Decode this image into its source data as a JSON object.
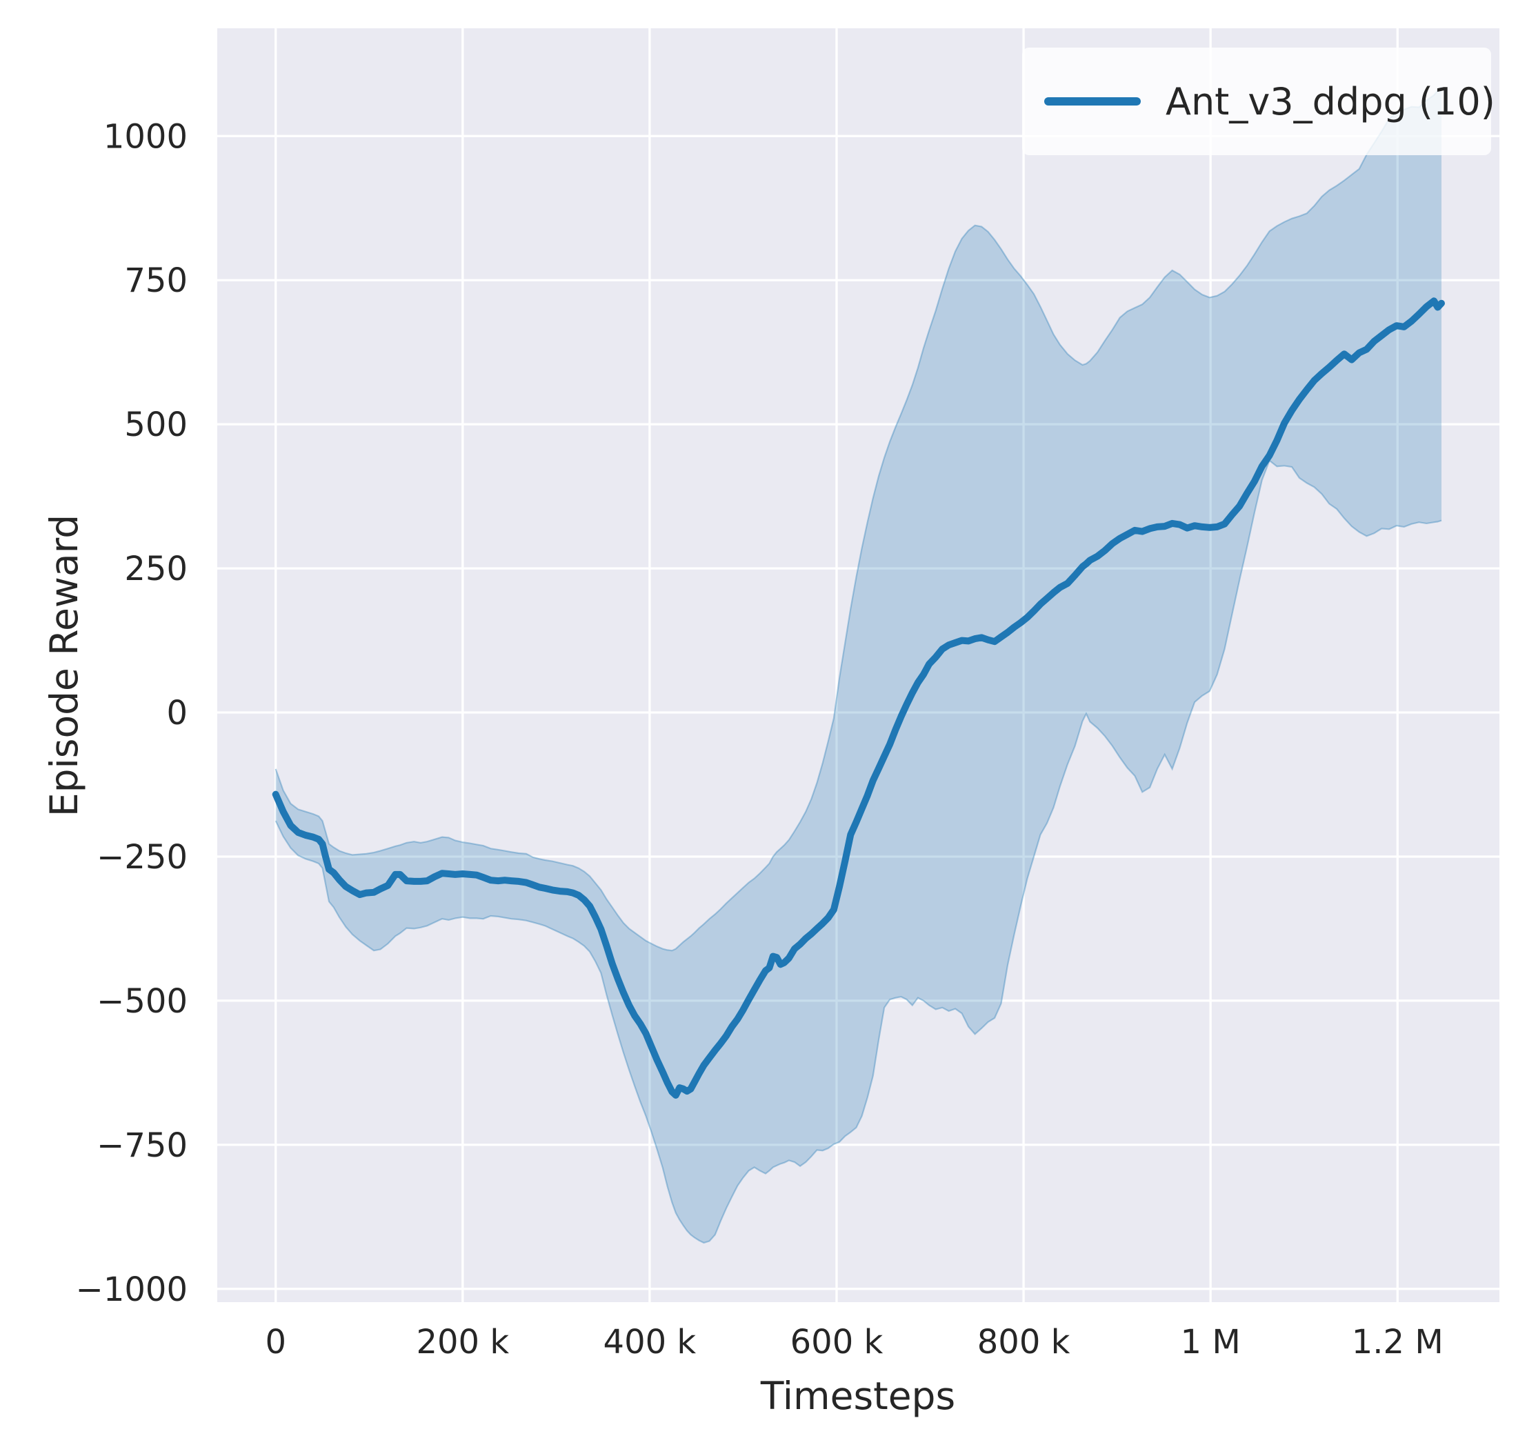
{
  "chart_data": {
    "type": "line",
    "title": "",
    "xlabel": "Timesteps",
    "ylabel": "Episode Reward",
    "grid": true,
    "plot_bg_color": "#eaeaf2",
    "grid_color": "#ffffff",
    "text_color": "#262626",
    "xlim": [
      -62500,
      1309000
    ],
    "ylim": [
      -1023,
      1187
    ],
    "x_ticks": {
      "values": [
        0,
        200000,
        400000,
        600000,
        800000,
        1000000,
        1200000
      ],
      "labels": [
        "0",
        "200 k",
        "400 k",
        "600 k",
        "800 k",
        "1 M",
        "1.2 M"
      ]
    },
    "y_ticks": {
      "values": [
        -1000,
        -750,
        -500,
        -250,
        0,
        250,
        500,
        750,
        1000
      ],
      "labels": [
        "−1000",
        "−750",
        "−500",
        "−250",
        "0",
        "250",
        "500",
        "750",
        "1000"
      ]
    },
    "legend": {
      "label": "Ant_v3_ddpg (10)",
      "position": "upper-right",
      "bg_color": "#ffffff",
      "bg_opacity": 0.8
    },
    "series": [
      {
        "name": "Ant_v3_ddpg (10)",
        "color": "#1f77b4",
        "band_opacity": 0.25,
        "band_edge_opacity": 0.35,
        "x": [
          0,
          8000,
          16000,
          24000,
          32000,
          40000,
          46000,
          50000,
          53000,
          57000,
          62000,
          68000,
          75000,
          82000,
          90000,
          97000,
          105000,
          112000,
          120000,
          128000,
          133000,
          140000,
          148000,
          155000,
          162000,
          170000,
          178000,
          185000,
          192000,
          200000,
          208000,
          215000,
          222000,
          230000,
          238000,
          245000,
          252000,
          260000,
          268000,
          275000,
          282000,
          288000,
          296000,
          304000,
          312000,
          318000,
          324000,
          330000,
          336000,
          342000,
          348000,
          354000,
          360000,
          366000,
          372000,
          378000,
          384000,
          390000,
          396000,
          402000,
          408000,
          414000,
          419000,
          424000,
          428000,
          432000,
          436000,
          440000,
          444000,
          448000,
          453000,
          458000,
          464000,
          470000,
          476000,
          482000,
          488000,
          494000,
          500000,
          506000,
          512000,
          518000,
          524000,
          528000,
          532000,
          536000,
          540000,
          544000,
          549000,
          555000,
          561000,
          567000,
          573000,
          579000,
          585000,
          591000,
          597000,
          603000,
          609000,
          615000,
          621000,
          627000,
          633000,
          639000,
          645000,
          651000,
          657000,
          663000,
          669000,
          675000,
          681000,
          687000,
          693000,
          699000,
          706000,
          713000,
          720000,
          727000,
          734000,
          741000,
          748000,
          755000,
          762000,
          769000,
          776000,
          783000,
          790000,
          797000,
          804000,
          811000,
          818000,
          825000,
          832000,
          839000,
          847000,
          855000,
          863000,
          867000,
          871000,
          879000,
          887000,
          895000,
          903000,
          911000,
          919000,
          927000,
          935000,
          943000,
          951000,
          959000,
          967000,
          975000,
          983000,
          991000,
          999000,
          1007000,
          1015000,
          1023000,
          1031000,
          1039000,
          1047000,
          1055000,
          1063000,
          1071000,
          1079000,
          1087000,
          1095000,
          1103000,
          1111000,
          1119000,
          1127000,
          1135000,
          1143000,
          1151000,
          1159000,
          1167000,
          1175000,
          1183000,
          1191000,
          1199000,
          1207000,
          1215000,
          1223000,
          1231000,
          1239000,
          1243000,
          1247000
        ],
        "mean": [
          -142,
          -172,
          -196,
          -208,
          -213,
          -216,
          -220,
          -228,
          -248,
          -272,
          -278,
          -290,
          -302,
          -309,
          -316,
          -313,
          -312,
          -306,
          -300,
          -281,
          -281,
          -292,
          -293,
          -293,
          -292,
          -285,
          -279,
          -280,
          -281,
          -280,
          -281,
          -282,
          -286,
          -291,
          -292,
          -291,
          -292,
          -293,
          -295,
          -299,
          -303,
          -305,
          -308,
          -310,
          -311,
          -313,
          -317,
          -325,
          -336,
          -355,
          -376,
          -405,
          -436,
          -462,
          -486,
          -508,
          -526,
          -540,
          -557,
          -580,
          -603,
          -624,
          -642,
          -658,
          -664,
          -651,
          -653,
          -657,
          -653,
          -641,
          -626,
          -612,
          -599,
          -586,
          -574,
          -561,
          -545,
          -532,
          -516,
          -498,
          -481,
          -464,
          -448,
          -443,
          -423,
          -425,
          -437,
          -434,
          -426,
          -410,
          -402,
          -392,
          -384,
          -375,
          -366,
          -356,
          -342,
          -302,
          -258,
          -212,
          -190,
          -167,
          -144,
          -118,
          -97,
          -76,
          -55,
          -30,
          -7,
          14,
          34,
          52,
          66,
          84,
          96,
          110,
          117,
          121,
          125,
          124,
          128,
          130,
          126,
          123,
          131,
          139,
          148,
          156,
          165,
          176,
          188,
          198,
          208,
          217,
          224,
          238,
          253,
          258,
          264,
          271,
          281,
          293,
          302,
          309,
          316,
          314,
          319,
          322,
          323,
          328,
          326,
          320,
          324,
          322,
          321,
          322,
          327,
          343,
          358,
          380,
          401,
          427,
          446,
          472,
          502,
          524,
          543,
          560,
          576,
          588,
          599,
          611,
          622,
          612,
          624,
          630,
          644,
          654,
          664,
          671,
          669,
          679,
          691,
          704,
          714,
          703,
          710
        ],
        "upper": [
          -98,
          -135,
          -158,
          -168,
          -172,
          -176,
          -180,
          -188,
          -205,
          -228,
          -234,
          -240,
          -244,
          -247,
          -246,
          -245,
          -243,
          -240,
          -236,
          -232,
          -230,
          -226,
          -224,
          -226,
          -224,
          -220,
          -216,
          -217,
          -222,
          -225,
          -227,
          -229,
          -231,
          -236,
          -238,
          -240,
          -242,
          -244,
          -245,
          -251,
          -254,
          -256,
          -258,
          -261,
          -264,
          -266,
          -270,
          -276,
          -284,
          -296,
          -308,
          -324,
          -338,
          -352,
          -365,
          -375,
          -382,
          -389,
          -396,
          -401,
          -406,
          -410,
          -412,
          -413,
          -410,
          -404,
          -398,
          -393,
          -388,
          -382,
          -374,
          -367,
          -358,
          -350,
          -341,
          -331,
          -322,
          -313,
          -304,
          -295,
          -288,
          -279,
          -269,
          -262,
          -250,
          -242,
          -236,
          -230,
          -221,
          -206,
          -190,
          -172,
          -150,
          -122,
          -88,
          -50,
          -10,
          60,
          120,
          180,
          235,
          285,
          330,
          372,
          410,
          442,
          470,
          495,
          518,
          542,
          568,
          598,
          632,
          663,
          697,
          735,
          770,
          800,
          822,
          836,
          845,
          843,
          834,
          820,
          804,
          786,
          770,
          757,
          742,
          726,
          704,
          680,
          656,
          638,
          622,
          611,
          603,
          605,
          610,
          625,
          645,
          664,
          685,
          696,
          702,
          708,
          720,
          738,
          755,
          767,
          760,
          747,
          734,
          725,
          720,
          723,
          730,
          743,
          758,
          775,
          795,
          816,
          835,
          844,
          851,
          857,
          861,
          866,
          879,
          895,
          906,
          914,
          923,
          933,
          943,
          968,
          988,
          1008,
          1030,
          1041,
          1046,
          1051,
          1050,
          1062,
          1071,
          1079,
          1086
        ],
        "lower": [
          -188,
          -215,
          -235,
          -248,
          -254,
          -258,
          -262,
          -270,
          -295,
          -328,
          -338,
          -355,
          -372,
          -385,
          -396,
          -404,
          -413,
          -411,
          -401,
          -388,
          -383,
          -374,
          -375,
          -373,
          -370,
          -364,
          -358,
          -360,
          -357,
          -355,
          -357,
          -357,
          -358,
          -353,
          -354,
          -356,
          -358,
          -359,
          -361,
          -364,
          -367,
          -370,
          -376,
          -382,
          -388,
          -392,
          -398,
          -405,
          -415,
          -432,
          -452,
          -490,
          -525,
          -558,
          -590,
          -620,
          -648,
          -675,
          -700,
          -728,
          -758,
          -790,
          -822,
          -850,
          -868,
          -880,
          -890,
          -899,
          -906,
          -911,
          -916,
          -920,
          -917,
          -906,
          -882,
          -860,
          -840,
          -821,
          -807,
          -795,
          -789,
          -795,
          -800,
          -795,
          -789,
          -786,
          -783,
          -781,
          -777,
          -780,
          -787,
          -780,
          -770,
          -759,
          -760,
          -756,
          -749,
          -745,
          -735,
          -728,
          -720,
          -700,
          -668,
          -630,
          -568,
          -512,
          -498,
          -495,
          -493,
          -498,
          -508,
          -495,
          -500,
          -508,
          -515,
          -512,
          -518,
          -514,
          -522,
          -545,
          -558,
          -548,
          -537,
          -530,
          -505,
          -438,
          -385,
          -335,
          -288,
          -250,
          -212,
          -192,
          -165,
          -128,
          -90,
          -58,
          -15,
          -2,
          -16,
          -27,
          -41,
          -58,
          -78,
          -96,
          -110,
          -138,
          -130,
          -98,
          -73,
          -98,
          -62,
          -18,
          18,
          29,
          37,
          66,
          110,
          170,
          230,
          287,
          347,
          403,
          437,
          427,
          428,
          426,
          407,
          398,
          391,
          379,
          362,
          353,
          337,
          323,
          313,
          306,
          311,
          319,
          318,
          324,
          322,
          327,
          330,
          328,
          330,
          331,
          333
        ]
      }
    ]
  }
}
